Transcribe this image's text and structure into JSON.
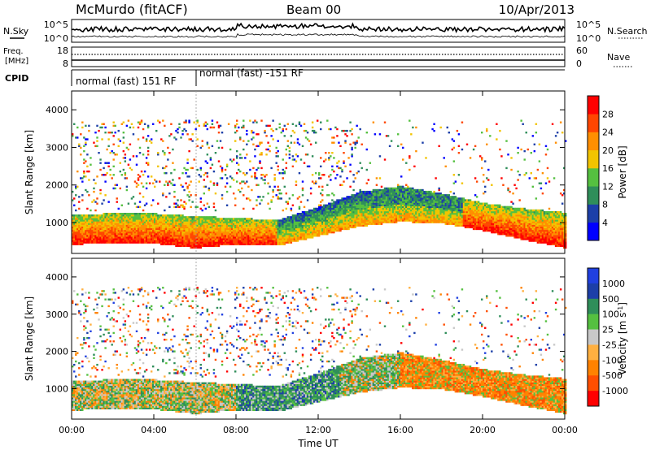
{
  "header": {
    "station": "McMurdo (fitACF)",
    "beam": "Beam 00",
    "date": "10/Apr/2013"
  },
  "noise_panel": {
    "left_label": "N.Sky",
    "right_label": "N.Search",
    "left_ticks": [
      "10^5",
      "10^0"
    ],
    "right_ticks": [
      "10^5",
      "10^0"
    ]
  },
  "freq_panel": {
    "left_label_1": "Freq.",
    "left_label_2": "[MHz]",
    "left_ticks": [
      "18",
      "8"
    ],
    "right_label": "Nave",
    "right_ticks": [
      "60",
      "0"
    ]
  },
  "cpid_panel": {
    "label": "CPID",
    "segments": [
      {
        "start_h": 0,
        "end_h": 6,
        "text": "normal (fast) 151 RF"
      },
      {
        "start_h": 6,
        "end_h": 24,
        "text": "normal (fast) -151 RF"
      }
    ]
  },
  "colors": {
    "power": [
      "#0000ff",
      "#1c3fa8",
      "#2f8e5a",
      "#55c040",
      "#f2c400",
      "#ff8f00",
      "#ff4600",
      "#ff0000"
    ],
    "velocity": [
      "#ff0000",
      "#ff4f00",
      "#ff8200",
      "#ffb040",
      "#c8c8c8",
      "#55c040",
      "#2f8e5a",
      "#1c3fa8",
      "#2040e0"
    ]
  },
  "chart_data": [
    {
      "type": "heatmap",
      "panel": "power",
      "ylabel": "Slant Range [km]",
      "ylim": [
        180,
        4500
      ],
      "yticks": [
        1000,
        2000,
        3000,
        4000
      ],
      "colorbar_label": "Power [dB]",
      "colorbar_ticks": [
        "4",
        "8",
        "12",
        "16",
        "20",
        "24",
        "28"
      ],
      "series": [
        {
          "name": "echo_band_lower_km",
          "x": [
            0,
            2,
            4,
            6,
            8,
            10,
            12,
            14,
            16,
            18,
            20,
            22,
            24
          ],
          "values": [
            400,
            420,
            420,
            300,
            400,
            360,
            620,
            880,
            1000,
            960,
            760,
            520,
            300
          ]
        },
        {
          "name": "echo_band_upper_km",
          "x": [
            0,
            2,
            4,
            6,
            8,
            10,
            12,
            14,
            16,
            18,
            20,
            22,
            24
          ],
          "values": [
            1200,
            1220,
            1220,
            1150,
            1100,
            1050,
            1400,
            1800,
            1950,
            1750,
            1500,
            1350,
            1250
          ]
        }
      ]
    },
    {
      "type": "heatmap",
      "panel": "velocity",
      "xlabel": "Time UT",
      "ylabel": "Slant Range [km]",
      "ylim": [
        180,
        4500
      ],
      "yticks": [
        1000,
        2000,
        3000,
        4000
      ],
      "xticks": [
        "00:00",
        "04:00",
        "08:00",
        "12:00",
        "16:00",
        "20:00",
        "00:00"
      ],
      "colorbar_label": "Velocity [m s",
      "colorbar_label_sup": "-1",
      "colorbar_label_end": "]",
      "colorbar_ticks": [
        "1000",
        "500",
        "100",
        "25",
        "-25",
        "-100",
        "-500",
        "-1000"
      ]
    }
  ]
}
